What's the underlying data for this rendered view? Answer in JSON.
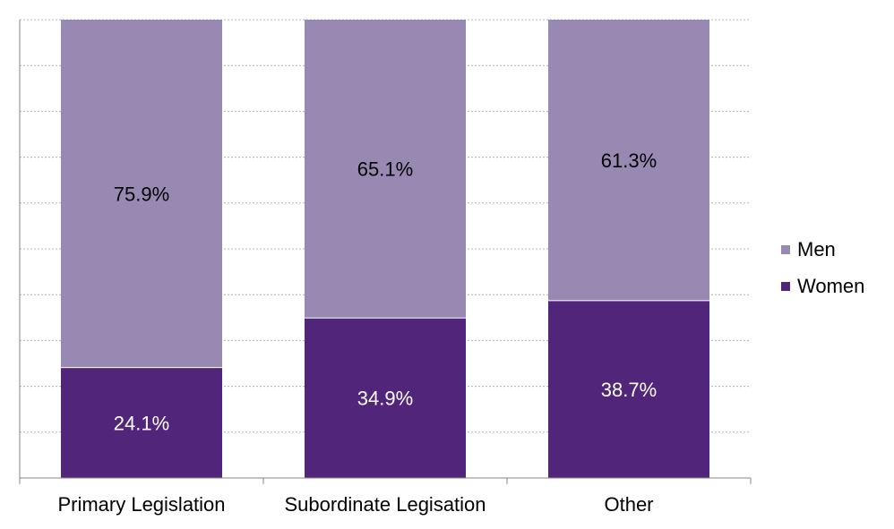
{
  "chart_data": {
    "type": "bar",
    "stacked": true,
    "percent_stacked": true,
    "categories": [
      "Primary Legislation",
      "Subordinate Legisation",
      "Other"
    ],
    "series": [
      {
        "name": "Women",
        "values": [
          24.1,
          34.9,
          38.7
        ],
        "labels": [
          "24.1%",
          "34.9%",
          "38.7%"
        ],
        "color": "#51267a",
        "label_color": "#ffffff"
      },
      {
        "name": "Men",
        "values": [
          75.9,
          65.1,
          61.3
        ],
        "labels": [
          "75.9%",
          "65.1%",
          "61.3%"
        ],
        "color": "#9889b3",
        "label_color": "#000000"
      }
    ],
    "ylim": [
      0,
      100
    ],
    "grid": true,
    "legend": "right"
  }
}
